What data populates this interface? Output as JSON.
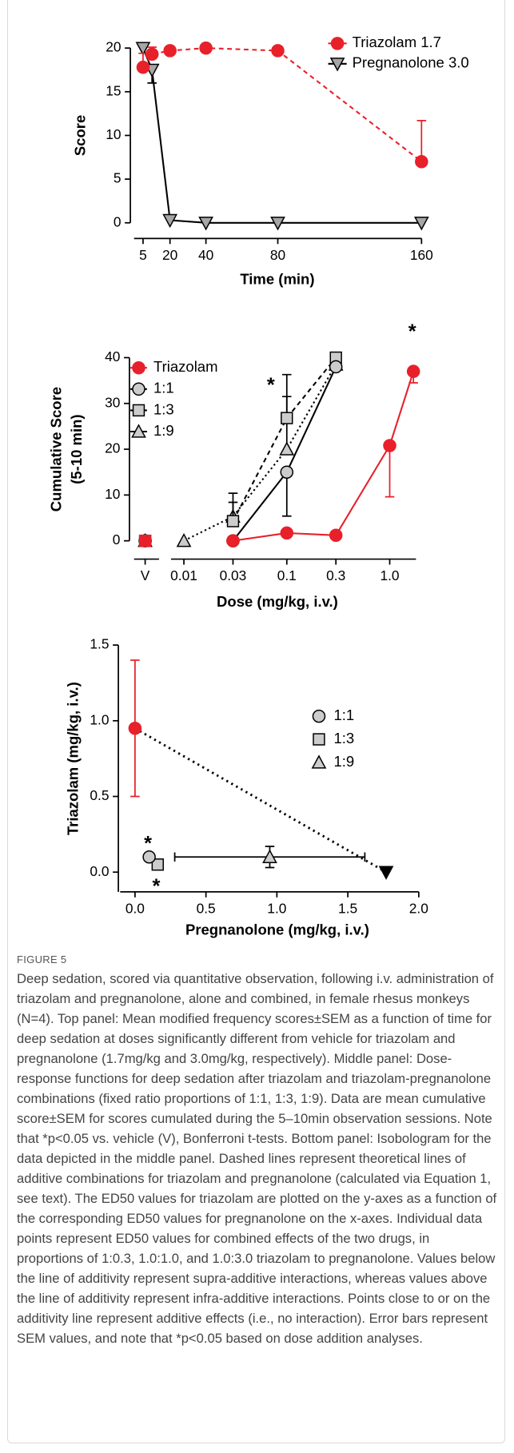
{
  "chart_data": [
    {
      "type": "line",
      "xlabel": "Time (min)",
      "ylabel": [
        "Score"
      ],
      "x": [
        5,
        10,
        20,
        40,
        80,
        160
      ],
      "xlim": [
        0,
        160
      ],
      "ylim": [
        -2,
        20
      ],
      "xticks": [
        5,
        20,
        40,
        80,
        160
      ],
      "yticks": [
        0,
        5,
        10,
        15,
        20
      ],
      "legend": "upper right",
      "series": [
        {
          "name": "Triazolam 1.7",
          "marker": "circle",
          "color": "#e8202a",
          "edge_color": "#e8202a",
          "line_color": "#e8202a",
          "line_style": "dashed",
          "values": [
            17.8,
            19.3,
            19.7,
            20,
            19.7,
            7
          ],
          "errors": [
            1.6,
            0.8,
            0,
            0,
            0,
            4.7
          ],
          "error_side": "up"
        },
        {
          "name": "Pregnanolone 3.0",
          "marker": "triangle-down",
          "color": "#a6a6a6",
          "edge_color": "#000000",
          "line_color": "#000000",
          "line_style": "solid",
          "values": [
            20,
            17.5,
            0.3,
            0,
            0,
            0
          ],
          "errors": [
            0,
            1.5,
            0,
            0,
            0,
            0
          ],
          "error_side": "down"
        }
      ]
    },
    {
      "type": "line",
      "xlabel": "Dose (mg/kg, i.v.)",
      "ylabel": [
        "Cumulative Score",
        "(5-10 min)"
      ],
      "xscale": "log",
      "vehicle_label": "V",
      "xlim": [
        0.0075,
        1.8
      ],
      "ylim": [
        -4,
        40
      ],
      "xticks": [
        0.01,
        0.03,
        0.1,
        0.3,
        {
          "value": 1,
          "label": "1.0"
        }
      ],
      "yticks": [
        0,
        10,
        20,
        30,
        40
      ],
      "legend": "upper left",
      "annotations": [
        "*",
        "*"
      ],
      "series": [
        {
          "name": "Triazolam",
          "marker": "circle",
          "color": "#e8202a",
          "edge_color": "#e8202a",
          "line_color": "#e8202a",
          "line_style": "solid",
          "vehicle_value": 0,
          "x": [
            0.03,
            0.1,
            0.3,
            1,
            1.7
          ],
          "values": [
            0,
            1.7,
            1.2,
            20.8,
            37
          ],
          "errors": [
            0,
            0,
            0,
            11.2,
            2.5
          ],
          "error_side": "down"
        },
        {
          "name": "1:1",
          "marker": "circle",
          "color": "#cccccc",
          "edge_color": "#000000",
          "line_color": "#000000",
          "line_style": "solid",
          "vehicle_value": 0,
          "x": [
            0.03,
            0.1,
            0.3
          ],
          "values": [
            0,
            15,
            38
          ],
          "errors": [
            0,
            9.6,
            0
          ],
          "error_side": "down"
        },
        {
          "name": "1:3",
          "marker": "square",
          "color": "#cccccc",
          "edge_color": "#000000",
          "line_color": "#000000",
          "line_style": "dashed",
          "vehicle_value": 0,
          "x": [
            0.03,
            0.1,
            0.3
          ],
          "values": [
            4.3,
            26.8,
            40
          ],
          "errors": [
            6.1,
            9.5,
            0
          ],
          "error_side": "up"
        },
        {
          "name": "1:9",
          "marker": "triangle",
          "color": "#cccccc",
          "edge_color": "#000000",
          "line_color": "#000000",
          "line_style": "dotted",
          "vehicle_value": 0,
          "x": [
            0.01,
            0.03,
            0.1,
            0.3
          ],
          "values": [
            0,
            5.3,
            20,
            38.5
          ],
          "errors": [
            0,
            3.1,
            11.5,
            0
          ],
          "error_side": "up"
        }
      ]
    },
    {
      "type": "scatter",
      "xlabel": "Pregnanolone (mg/kg, i.v.)",
      "ylabel": [
        "Triazolam (mg/kg, i.v.)"
      ],
      "xlim": [
        -0.12,
        2.0
      ],
      "ylim": [
        -0.13,
        1.5
      ],
      "xticks": [
        {
          "value": 0,
          "label": "0.0"
        },
        0.5,
        {
          "value": 1,
          "label": "1.0"
        },
        1.5,
        {
          "value": 2,
          "label": "2.0"
        }
      ],
      "yticks": [
        {
          "value": 0,
          "label": "0.0"
        },
        0.5,
        {
          "value": 1,
          "label": "1.0"
        },
        1.5
      ],
      "legend": "center right",
      "additivity_line": true,
      "annotations": [
        "*",
        "*"
      ],
      "series": [
        {
          "marker": "circle",
          "color": "#e8202a",
          "edge_color": "#e8202a",
          "line_style": "none",
          "x": [
            0
          ],
          "values": [
            0.95
          ],
          "errors": [
            0.45
          ],
          "error_side": "both"
        },
        {
          "marker": "triangle-down",
          "color": "#000000",
          "edge_color": "#000000",
          "line_style": "none",
          "x": [
            1.77
          ],
          "values": [
            0
          ]
        },
        {
          "name": "1:1",
          "marker": "circle",
          "color": "#cccccc",
          "edge_color": "#000000",
          "line_style": "none",
          "x": [
            0.1
          ],
          "values": [
            0.1
          ]
        },
        {
          "name": "1:3",
          "marker": "square",
          "color": "#cccccc",
          "edge_color": "#000000",
          "line_style": "none",
          "x": [
            0.16
          ],
          "values": [
            0.05
          ]
        },
        {
          "name": "1:9",
          "marker": "triangle",
          "color": "#cccccc",
          "edge_color": "#000000",
          "line_style": "none",
          "x": [
            0.95
          ],
          "values": [
            0.1
          ],
          "errors": [
            0.07
          ],
          "error_side": "both",
          "x_errors": [
            0.67
          ]
        }
      ]
    }
  ],
  "caption": {
    "label": "FIGURE 5",
    "text": "Deep sedation, scored via quantitative observation, following i.v. administration of triazolam and pregnanolone, alone and combined, in female rhesus monkeys (N=4). Top panel: Mean modified frequency scores±SEM as a function of time for deep sedation at doses significantly different from vehicle for triazolam and pregnanolone (1.7mg/kg and 3.0mg/kg, respectively). Middle panel: Dose-response functions for deep sedation after triazolam and triazolam-pregnanolone combinations (fixed ratio proportions of 1:1, 1:3, 1:9). Data are mean cumulative score±SEM for scores cumulated during the 5–10min observation sessions. Note that *p<0.05 vs. vehicle (V), Bonferroni t-tests. Bottom panel: Isobologram for the data depicted in the middle panel. Dashed lines represent theoretical lines of additive combinations for triazolam and pregnanolone (calculated via Equation 1, see text). The ED50 values for triazolam are plotted on the y-axes as a function of the corresponding ED50 values for pregnanolone on the x-axes. Individual data points represent ED50 values for combined effects of the two drugs, in proportions of 1:0.3, 1.0:1.0, and 1.0:3.0 triazolam to pregnanolone. Values below the line of additivity represent supra-additive interactions, whereas values above the line of additivity represent infra-additive interactions. Points close to or on the additivity line represent additive effects (i.e., no interaction). Error bars represent SEM values, and note that *p<0.05 based on dose addition analyses."
  }
}
